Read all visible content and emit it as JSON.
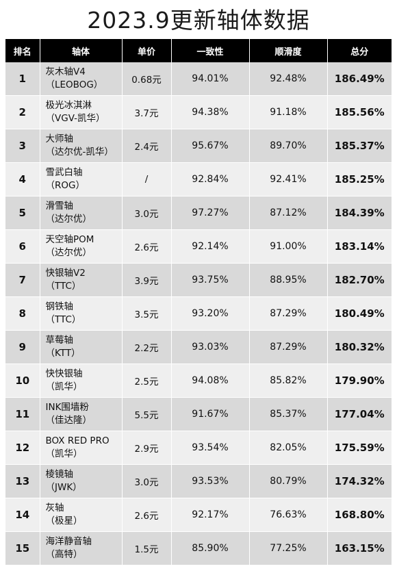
{
  "title": "2023.9更新轴体数据",
  "headers": {
    "rank": "排名",
    "name": "轴体",
    "price": "单价",
    "consistency": "一致性",
    "smoothness": "顺滑度",
    "total": "总分"
  },
  "rows": [
    {
      "rank": "1",
      "name": "灰木轴V4",
      "maker": "（LEOBOG）",
      "price": "0.68元",
      "consistency": "94.01%",
      "smoothness": "92.48%",
      "total": "186.49%"
    },
    {
      "rank": "2",
      "name": "极光冰淇淋",
      "maker": "（VGV-凯华）",
      "price": "3.7元",
      "consistency": "94.38%",
      "smoothness": "91.18%",
      "total": "185.56%"
    },
    {
      "rank": "3",
      "name": "大师轴",
      "maker": "（达尔优-凯华）",
      "price": "2.4元",
      "consistency": "95.67%",
      "smoothness": "89.70%",
      "total": "185.37%"
    },
    {
      "rank": "4",
      "name": "雪武白轴",
      "maker": "（ROG）",
      "price": "/",
      "consistency": "92.84%",
      "smoothness": "92.41%",
      "total": "185.25%"
    },
    {
      "rank": "5",
      "name": "滑雪轴",
      "maker": "（达尔优）",
      "price": "3.0元",
      "consistency": "97.27%",
      "smoothness": "87.12%",
      "total": "184.39%"
    },
    {
      "rank": "6",
      "name": "天空轴POM",
      "maker": "（达尔优）",
      "price": "2.6元",
      "consistency": "92.14%",
      "smoothness": "91.00%",
      "total": "183.14%"
    },
    {
      "rank": "7",
      "name": "快银轴V2",
      "maker": "（TTC）",
      "price": "3.9元",
      "consistency": "93.75%",
      "smoothness": "88.95%",
      "total": "182.70%"
    },
    {
      "rank": "8",
      "name": "钢铁轴",
      "maker": "（TTC）",
      "price": "3.5元",
      "consistency": "93.20%",
      "smoothness": "87.29%",
      "total": "180.49%"
    },
    {
      "rank": "9",
      "name": "草莓轴",
      "maker": "（KTT）",
      "price": "2.2元",
      "consistency": "93.03%",
      "smoothness": "87.29%",
      "total": "180.32%"
    },
    {
      "rank": "10",
      "name": "快快银轴",
      "maker": "（凯华）",
      "price": "2.5元",
      "consistency": "94.08%",
      "smoothness": "85.82%",
      "total": "179.90%"
    },
    {
      "rank": "11",
      "name": "INK围墙粉",
      "maker": "（佳达隆）",
      "price": "5.5元",
      "consistency": "91.67%",
      "smoothness": "85.37%",
      "total": "177.04%"
    },
    {
      "rank": "12",
      "name": "BOX RED PRO",
      "maker": "（凯华）",
      "price": "2.9元",
      "consistency": "93.54%",
      "smoothness": "82.05%",
      "total": "175.59%"
    },
    {
      "rank": "13",
      "name": "棱镜轴",
      "maker": "（JWK）",
      "price": "3.0元",
      "consistency": "93.53%",
      "smoothness": "80.79%",
      "total": "174.32%"
    },
    {
      "rank": "14",
      "name": "灰轴",
      "maker": "（极星）",
      "price": "2.6元",
      "consistency": "92.17%",
      "smoothness": "76.63%",
      "total": "168.80%"
    },
    {
      "rank": "15",
      "name": "海洋静音轴",
      "maker": "（高特）",
      "price": "1.5元",
      "consistency": "85.90%",
      "smoothness": "77.25%",
      "total": "163.15%"
    }
  ]
}
